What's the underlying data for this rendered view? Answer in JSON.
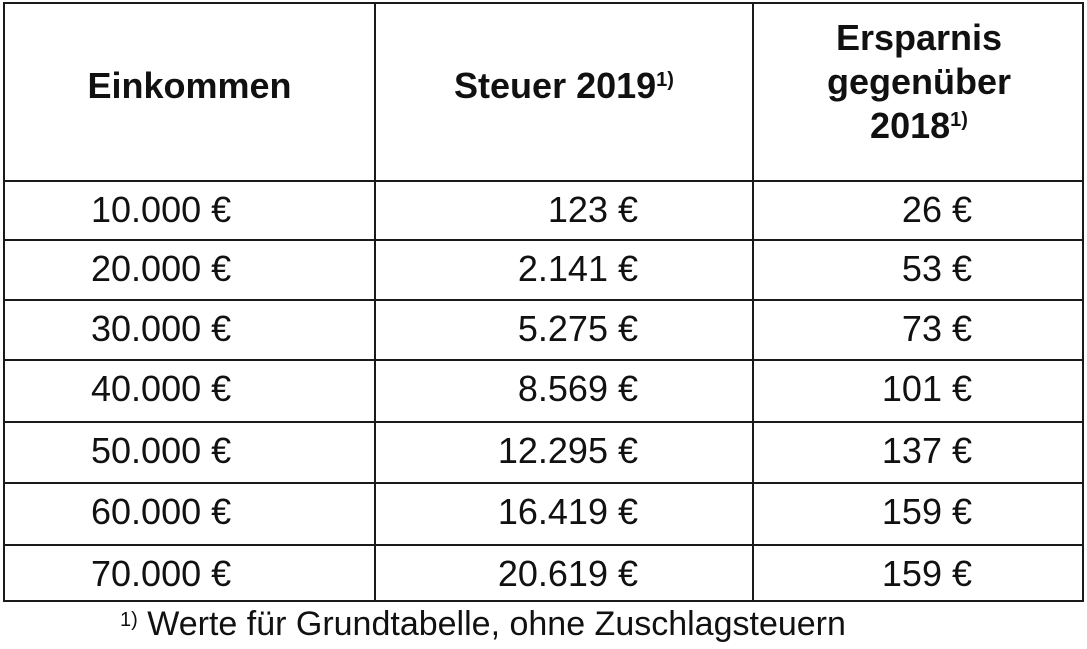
{
  "table": {
    "headers": {
      "income": "Einkommen",
      "tax": "Steuer 2019",
      "tax_sup": "1)",
      "savings_line1": "Ersparnis",
      "savings_line2": "gegenüber",
      "savings_line3": "2018",
      "savings_sup": "1)"
    },
    "rows": [
      {
        "income": "10.000 €",
        "tax": "123 €",
        "savings": "26 €"
      },
      {
        "income": "20.000 €",
        "tax": "2.141 €",
        "savings": "53 €"
      },
      {
        "income": "30.000 €",
        "tax": "5.275 €",
        "savings": "73 €"
      },
      {
        "income": "40.000 €",
        "tax": "8.569 €",
        "savings": "101 €"
      },
      {
        "income": "50.000 €",
        "tax": "12.295 €",
        "savings": "137 €"
      },
      {
        "income": "60.000 €",
        "tax": "16.419 €",
        "savings": "159 €"
      },
      {
        "income": "70.000 €",
        "tax": "20.619 €",
        "savings": "159 €"
      }
    ]
  },
  "footnote": {
    "marker": "1)",
    "text": "Werte für Grundtabelle, ohne Zuschlagsteuern"
  }
}
